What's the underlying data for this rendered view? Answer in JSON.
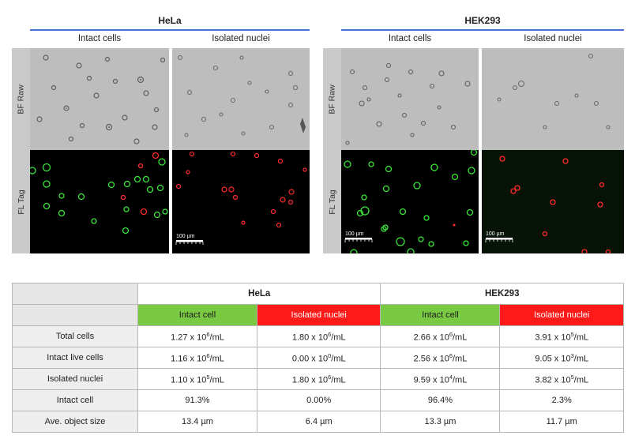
{
  "figure": {
    "groups": [
      {
        "title": "HeLa",
        "col_labels": [
          "Intact cells",
          "Isolated nuclei"
        ]
      },
      {
        "title": "HEK293",
        "col_labels": [
          "Intact cells",
          "Isolated nuclei"
        ]
      }
    ],
    "row_labels": [
      "BF Raw",
      "FL Tag"
    ],
    "scale_bar": "100 µm",
    "colors": {
      "bf_bg": "#bdbdbd",
      "live": "#39e639",
      "nuclei": "#ff2b2b",
      "accent_line": "#4a6fd6"
    }
  },
  "table": {
    "groups": [
      "HeLa",
      "HEK293"
    ],
    "subheaders": [
      "Intact cell",
      "Isolated nuclei",
      "Intact cell",
      "Isolated nuclei"
    ],
    "rows": [
      {
        "label": "Total cells",
        "cells": [
          {
            "m": "1.27 x 10",
            "e": "6",
            "u": "/mL"
          },
          {
            "m": "1.80 x 10",
            "e": "6",
            "u": "/mL"
          },
          {
            "m": "2.66 x 10",
            "e": "6",
            "u": "/mL"
          },
          {
            "m": "3.91 x 10",
            "e": "5",
            "u": "/mL"
          }
        ]
      },
      {
        "label": "Intact live cells",
        "cells": [
          {
            "m": "1.16 x 10",
            "e": "6",
            "u": "/mL"
          },
          {
            "m": "0.00 x 10",
            "e": "0",
            "u": "/mL"
          },
          {
            "m": "2.56 x 10",
            "e": "6",
            "u": "/mL"
          },
          {
            "m": "9.05 x 10",
            "e": "3",
            "u": "/mL"
          }
        ]
      },
      {
        "label": "Isolated nuclei",
        "cells": [
          {
            "m": "1.10 x 10",
            "e": "5",
            "u": "/mL"
          },
          {
            "m": "1.80 x 10",
            "e": "6",
            "u": "/mL"
          },
          {
            "m": "9.59 x 10",
            "e": "4",
            "u": "/mL"
          },
          {
            "m": "3.82 x 10",
            "e": "5",
            "u": "/mL"
          }
        ]
      },
      {
        "label": "Intact cell",
        "cells": [
          {
            "m": "91.3%"
          },
          {
            "m": "0.00%"
          },
          {
            "m": "96.4%"
          },
          {
            "m": "2.3%"
          }
        ]
      },
      {
        "label": "Ave. object size",
        "cells": [
          {
            "m": "13.4 µm"
          },
          {
            "m": "6.4 µm"
          },
          {
            "m": "13.3 µm"
          },
          {
            "m": "11.7 µm"
          }
        ]
      }
    ]
  }
}
